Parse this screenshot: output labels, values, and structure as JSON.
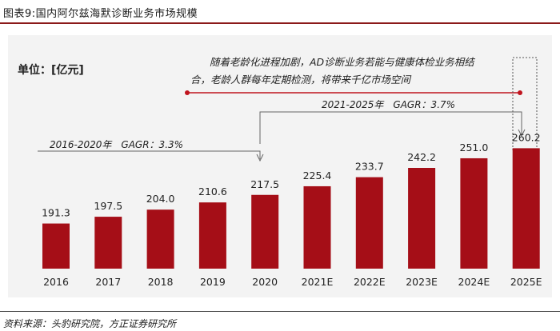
{
  "figure_title": "图表9:国内阿尔兹海默诊断业务市场规模",
  "source": "资料来源：头豹研究院，方正证券研究所",
  "colors": {
    "bar": "#a50e17",
    "accent": "#c0141e",
    "title_rule": "#8b1a1a"
  },
  "chart_data": {
    "type": "bar",
    "title": "国内阿尔兹海默诊断业务市场规模",
    "unit_label": "单位：[亿元]",
    "categories": [
      "2016",
      "2017",
      "2018",
      "2019",
      "2020",
      "2021E",
      "2022E",
      "2023E",
      "2024E",
      "2025E"
    ],
    "values": [
      191.3,
      197.5,
      204.0,
      210.6,
      217.5,
      225.4,
      233.7,
      242.2,
      251.0,
      260.2
    ],
    "value_labels": [
      "191.3",
      "197.5",
      "204.0",
      "210.6",
      "217.5",
      "225.4",
      "233.7",
      "242.2",
      "251.0",
      "260.2"
    ],
    "ylim": [
      150,
      270
    ],
    "annotations": {
      "cagr_2016_2020": "2016-2020年　GAGR：3.3%",
      "cagr_2021_2025": "2021-2025年　GAGR：3.7%",
      "note_line1": "随着老龄化进程加剧，AD诊断业务若能与健康体检业务相结",
      "note_line2": "合，老龄人群每年定期检测，将带来千亿市场空间"
    }
  }
}
